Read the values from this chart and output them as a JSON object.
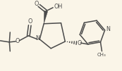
{
  "bg_color": "#faf5e8",
  "line_color": "#4a4a4a",
  "lw": 1.1,
  "fs": 5.8,
  "fs_small": 5.0,
  "figsize": [
    1.73,
    1.01
  ],
  "dpi": 100,
  "xlim": [
    0,
    173
  ],
  "ylim": [
    0,
    101
  ]
}
